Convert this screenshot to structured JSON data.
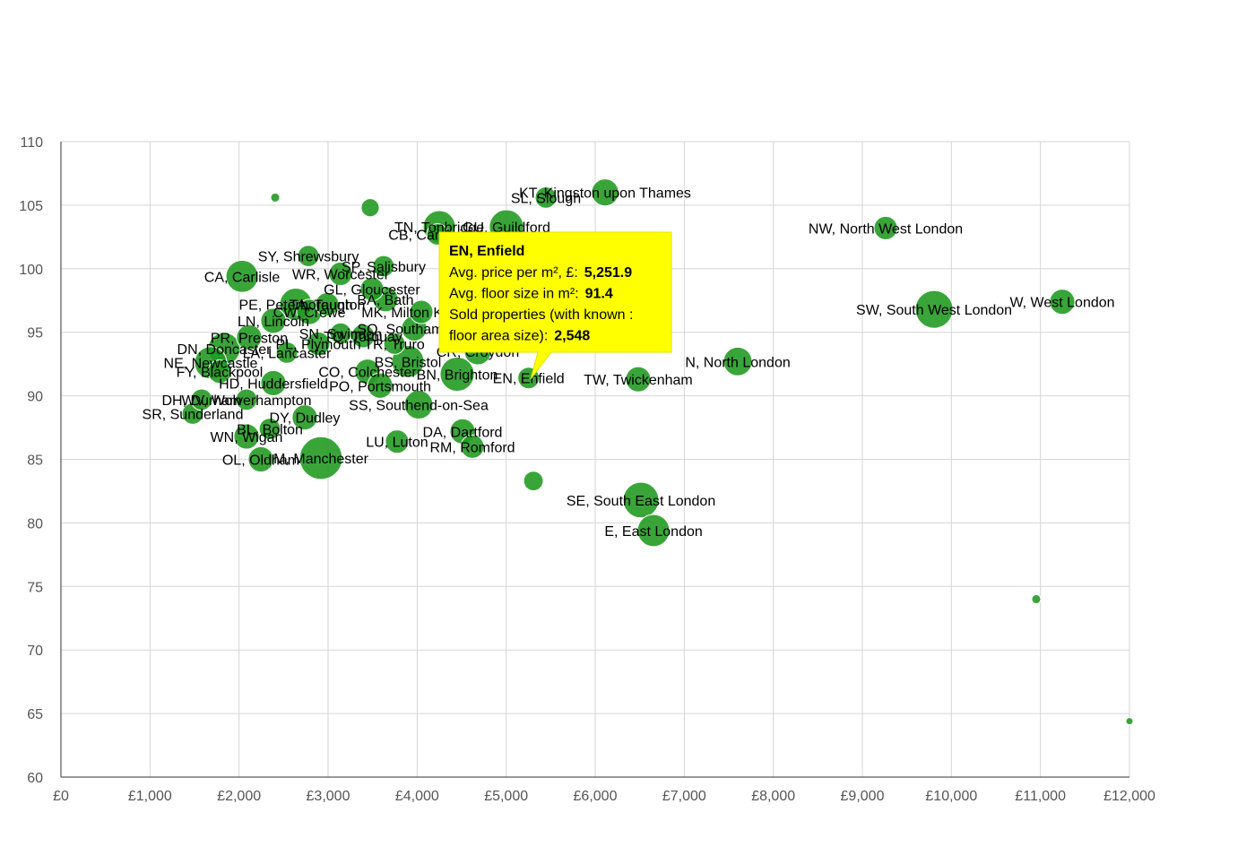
{
  "chart_data": {
    "type": "bubble",
    "series": [
      {
        "color": "#239b23",
        "x": [
          6111,
          5446,
          4249,
          5003,
          4228,
          9262,
          9806,
          11245,
          7601,
          6483,
          5251.9,
          6514,
          6655,
          5306,
          10953,
          12000,
          2406,
          3473,
          4510,
          4621,
          3775,
          4017,
          2920,
          2245,
          2084,
          2346,
          1480,
          1580,
          2084,
          2738,
          2386,
          4450,
          4681,
          3896,
          3443,
          3584,
          3745,
          3393,
          3141,
          2114,
          1832,
          2537,
          1681,
          1782,
          2386,
          2789,
          2638,
          2990,
          3644,
          3493,
          3624,
          3141,
          2779,
          2034,
          4047,
          3967,
          2890
        ],
        "values": [
          106.0,
          105.6,
          103.3,
          103.3,
          102.7,
          103.2,
          96.8,
          97.4,
          92.7,
          91.3,
          91.4,
          81.8,
          79.4,
          83.3,
          74.0,
          64.4,
          105.6,
          104.8,
          87.2,
          86.0,
          86.4,
          89.3,
          85.1,
          85.0,
          86.8,
          87.4,
          88.6,
          89.7,
          89.7,
          88.3,
          91.0,
          91.7,
          93.5,
          92.7,
          91.9,
          90.8,
          94.1,
          94.7,
          94.9,
          94.6,
          93.7,
          93.4,
          92.6,
          91.9,
          95.9,
          96.6,
          97.2,
          97.2,
          97.6,
          98.4,
          100.2,
          99.6,
          101.0,
          99.4,
          96.6,
          95.3,
          94.1
        ],
        "sizes": [
          4000,
          2500,
          5700,
          6400,
          2500,
          3000,
          7800,
          3500,
          4500,
          3500,
          2548,
          7000,
          5700,
          2100,
          450,
          280,
          450,
          1800,
          3500,
          3000,
          3000,
          4500,
          10000,
          3500,
          3500,
          2500,
          2500,
          2500,
          2500,
          3500,
          3500,
          6400,
          4000,
          5700,
          3500,
          3500,
          2500,
          3000,
          2500,
          3500,
          5700,
          2500,
          5700,
          3000,
          3500,
          3500,
          5700,
          3000,
          3500,
          3000,
          2500,
          3000,
          2500,
          5700,
          3000,
          3500,
          3000
        ],
        "labels": [
          "KT, Kingston upon Thames",
          "SL, Slough",
          "TN, Tonbridge",
          "GU, Guildford",
          "CB, Cambridge",
          "NW, North West London",
          "SW, South West London",
          "W, West London",
          "N, North London",
          "TW, Twickenham",
          "EN, Enfield",
          "SE, South East London",
          "E, East London",
          null,
          null,
          null,
          null,
          null,
          "DA, Dartford",
          "RM, Romford",
          "LU, Luton",
          "SS, Southend-on-Sea",
          "M, Manchester",
          "OL, Oldham",
          "WN, Wigan",
          "BL, Bolton",
          "SR, Sunderland",
          "DH, Durham",
          "WV, Wolverhampton",
          "DY, Dudley",
          "HD, Huddersfield",
          "BN, Brighton",
          "CR, Croydon",
          "BS, Bristol",
          "CO, Colchester",
          "PO, Portsmouth",
          "TR, Truro",
          "TQ, Torquay",
          "SN, Swindon",
          "PR, Preston",
          "DN, Doncaster",
          "LA, Lancaster",
          "NE, Newcastle",
          "FY, Blackpool",
          "LN, Lincoln",
          "CW, Crewe",
          "PE, Peterborough",
          "TA, Taunton",
          "BA, Bath",
          "GL, Gloucester",
          "SP, Salisbury",
          "WR, Worcester",
          "SY, Shrewsbury",
          "CA, Carlisle",
          "MK, Milton Keynes",
          "SO, Southampton",
          "PL, Plymouth"
        ]
      }
    ],
    "xlim": [
      0,
      12000
    ],
    "xticks": [
      {
        "value": 0,
        "label": "£0"
      },
      {
        "value": 1000,
        "label": "£1,000"
      },
      {
        "value": 2000,
        "label": "£2,000"
      },
      {
        "value": 3000,
        "label": "£3,000"
      },
      {
        "value": 4000,
        "label": "£4,000"
      },
      {
        "value": 5000,
        "label": "£5,000"
      },
      {
        "value": 6000,
        "label": "£6,000"
      },
      {
        "value": 7000,
        "label": "£7,000"
      },
      {
        "value": 8000,
        "label": "£8,000"
      },
      {
        "value": 9000,
        "label": "£9,000"
      },
      {
        "value": 10000,
        "label": "£10,000"
      },
      {
        "value": 11000,
        "label": "£11,000"
      },
      {
        "value": 12000,
        "label": "£12,000"
      }
    ],
    "ylim": [
      60,
      110
    ],
    "yticks": [
      60,
      65,
      70,
      75,
      80,
      85,
      90,
      95,
      100,
      105,
      110
    ],
    "grid": true,
    "tooltip": {
      "title": "EN, Enfield",
      "rows": [
        {
          "label": [
            "Avg. price per m², £:"
          ],
          "value": "5,251.9"
        },
        {
          "label": [
            "Avg. floor size in m²:"
          ],
          "value": "91.4"
        },
        {
          "label": [
            "Sold properties (with known :",
            "floor area size):"
          ],
          "value": "2,548"
        }
      ]
    }
  }
}
